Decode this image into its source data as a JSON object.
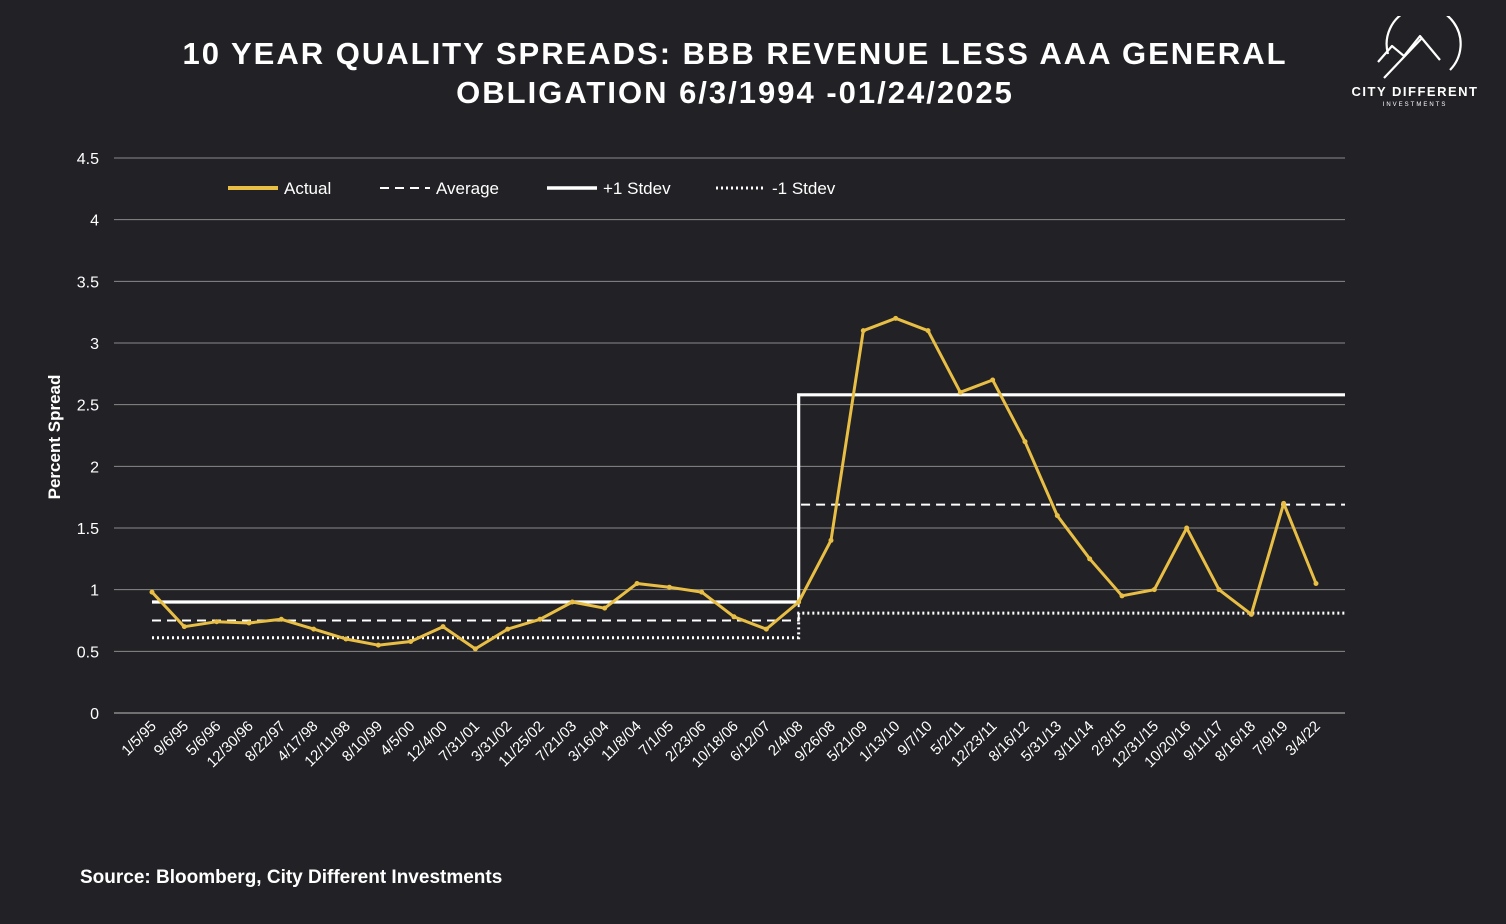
{
  "title": {
    "line1": "10 YEAR QUALITY SPREADS: BBB REVENUE LESS AAA GENERAL",
    "line2": "OBLIGATION 6/3/1994 -01/24/2025"
  },
  "logo": {
    "name": "CITY DIFFERENT",
    "sub": "INVESTMENTS"
  },
  "source": "Source: Bloomberg, City Different Investments",
  "colors": {
    "background": "#222226",
    "actual": "#E8BE45",
    "reference": "#FFFFFF",
    "grid": "#8A8A8A"
  },
  "chart_data": {
    "type": "line",
    "xlabel": "",
    "ylabel": "Percent Spread",
    "ylim": [
      0,
      4.5
    ],
    "yticks": [
      "0",
      "0.5",
      "1",
      "1.5",
      "2",
      "2.5",
      "3",
      "3.5",
      "4",
      "4.5"
    ],
    "grid": true,
    "legend_position": "top-left",
    "legend": [
      "Actual",
      "Average",
      "+1 Stdev",
      "-1 Stdev"
    ],
    "x_tick_labels": [
      "1/5/95",
      "9/6/95",
      "5/6/96",
      "12/30/96",
      "8/22/97",
      "4/17/98",
      "12/11/98",
      "8/10/99",
      "4/5/00",
      "12/4/00",
      "7/31/01",
      "3/31/02",
      "11/25/02",
      "7/21/03",
      "3/16/04",
      "11/8/04",
      "7/1/05",
      "2/23/06",
      "10/18/06",
      "6/12/07",
      "2/4/08",
      "9/26/08",
      "5/21/09",
      "1/13/10",
      "9/7/10",
      "5/2/11",
      "12/23/11",
      "8/16/12",
      "5/31/13",
      "3/11/14",
      "2/3/15",
      "12/31/15",
      "10/20/16",
      "9/11/17",
      "8/16/18",
      "7/9/19",
      "3/4/22"
    ],
    "reference_periods": [
      {
        "from": "1/5/95",
        "to": "2/4/08",
        "average": 0.75,
        "plus_1_stdev": 0.9,
        "minus_1_stdev": 0.61
      },
      {
        "from": "2/4/08",
        "to": "01/24/2025",
        "average": 1.69,
        "plus_1_stdev": 2.58,
        "minus_1_stdev": 0.81
      }
    ],
    "series": [
      {
        "name": "Actual",
        "x": [
          "1/5/95",
          "9/6/95",
          "5/6/96",
          "12/30/96",
          "8/22/97",
          "4/17/98",
          "12/11/98",
          "8/10/99",
          "4/5/00",
          "12/4/00",
          "7/31/01",
          "3/31/02",
          "11/25/02",
          "7/21/03",
          "3/16/04",
          "11/8/04",
          "7/1/05",
          "2/23/06",
          "10/18/06",
          "6/12/07",
          "2/4/08",
          "9/26/08",
          "5/21/09",
          "1/13/10",
          "9/7/10",
          "5/2/11",
          "12/23/11",
          "8/16/12",
          "5/31/13",
          "3/11/14",
          "2/3/15",
          "12/31/15",
          "10/20/16",
          "9/11/17",
          "8/16/18",
          "7/9/19",
          "3/4/22"
        ],
        "values": [
          0.98,
          0.7,
          0.74,
          0.73,
          0.76,
          0.68,
          0.6,
          0.55,
          0.58,
          0.7,
          0.52,
          0.68,
          0.76,
          0.9,
          0.85,
          1.05,
          1.02,
          0.98,
          0.78,
          0.68,
          0.9,
          1.4,
          3.1,
          3.2,
          3.1,
          2.6,
          2.7,
          2.2,
          1.6,
          1.25,
          0.95,
          1.0,
          1.5,
          1.0,
          0.8,
          1.7,
          1.05
        ]
      }
    ]
  }
}
